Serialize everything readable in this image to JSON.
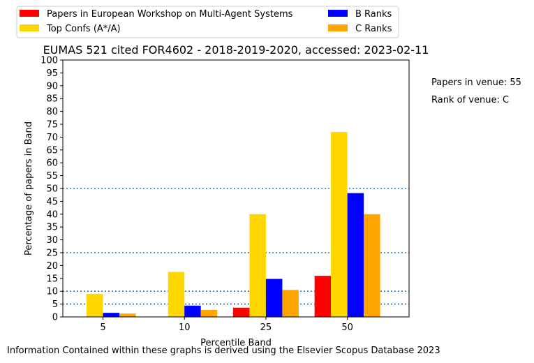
{
  "chart_data": {
    "type": "bar",
    "title": "EUMAS 521 cited FOR4602 - 2018-2019-2020, accessed: 2023-02-11",
    "xlabel": "Percentile Band",
    "ylabel": "Percentage of papers in Band",
    "categories": [
      "5",
      "10",
      "25",
      "50"
    ],
    "ylim": [
      0,
      100
    ],
    "yticks": [
      "0",
      "5",
      "10",
      "15",
      "20",
      "25",
      "30",
      "35",
      "40",
      "45",
      "50",
      "55",
      "60",
      "65",
      "70",
      "75",
      "80",
      "85",
      "90",
      "95",
      "100"
    ],
    "reference_lines": [
      5,
      10,
      25,
      50
    ],
    "legend_position": "top",
    "series": [
      {
        "name": "Papers in European Workshop on Multi-Agent Systems",
        "color": "#ff0000",
        "values": [
          0,
          0,
          3.6,
          16.0
        ]
      },
      {
        "name": "Top Confs (A*/A)",
        "color": "#ffd700",
        "values": [
          9.0,
          17.5,
          40.0,
          72.0
        ]
      },
      {
        "name": "B Ranks",
        "color": "#0000ff",
        "values": [
          1.6,
          4.4,
          14.8,
          48.2
        ]
      },
      {
        "name": "C Ranks",
        "color": "#ffa500",
        "values": [
          1.3,
          2.7,
          10.5,
          40.0
        ]
      }
    ]
  },
  "side_notes": {
    "papers_in_venue": "Papers in venue: 55",
    "rank_of_venue": "Rank of venue: C"
  },
  "footer": "Information Contained within these graphs is derived using the Elsevier Scopus Database 2023",
  "colors": {
    "reference_line": "#1f77b4",
    "axis": "#000000"
  }
}
